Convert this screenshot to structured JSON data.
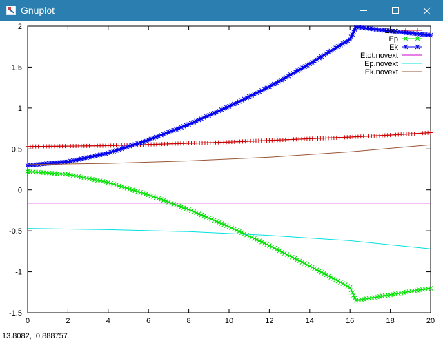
{
  "window": {
    "title": "Gnuplot",
    "app_icon": "gnuplot-icon",
    "titlebar_color": "#2b7fb0",
    "buttons": {
      "minimize_icon": "minimize-icon",
      "maximize_icon": "maximize-icon",
      "close_icon": "close-icon"
    }
  },
  "status": {
    "coords": "13.8082,  0.888757"
  },
  "chart_data": {
    "type": "line",
    "xlim": [
      0,
      20
    ],
    "ylim": [
      -1.5,
      2
    ],
    "x_ticks": [
      "0",
      "2",
      "4",
      "6",
      "8",
      "10",
      "12",
      "14",
      "16",
      "18",
      "20"
    ],
    "y_ticks": [
      "2",
      "1.5",
      "1",
      "0.5",
      "0",
      "-0.5",
      "-1",
      "-1.5"
    ],
    "grid": false,
    "legend_position": "top-right",
    "series": [
      {
        "name": "Etot",
        "color": "#cc0000",
        "marker": "plus",
        "points": [
          [
            0,
            0.53
          ],
          [
            2,
            0.535
          ],
          [
            4,
            0.54
          ],
          [
            6,
            0.555
          ],
          [
            8,
            0.57
          ],
          [
            10,
            0.585
          ],
          [
            12,
            0.605
          ],
          [
            14,
            0.625
          ],
          [
            16,
            0.645
          ],
          [
            18,
            0.67
          ],
          [
            20,
            0.7
          ]
        ]
      },
      {
        "name": "Ep",
        "color": "#00e000",
        "marker": "cross",
        "points": [
          [
            0,
            0.225
          ],
          [
            2,
            0.19
          ],
          [
            4,
            0.09
          ],
          [
            6,
            -0.06
          ],
          [
            8,
            -0.24
          ],
          [
            10,
            -0.45
          ],
          [
            12,
            -0.68
          ],
          [
            14,
            -0.93
          ],
          [
            16,
            -1.19
          ],
          [
            16.3,
            -1.35
          ],
          [
            18,
            -1.28
          ],
          [
            20,
            -1.2
          ]
        ]
      },
      {
        "name": "Ek",
        "color": "#0000ee",
        "marker": "star",
        "points": [
          [
            0,
            0.3
          ],
          [
            2,
            0.345
          ],
          [
            4,
            0.45
          ],
          [
            6,
            0.61
          ],
          [
            8,
            0.8
          ],
          [
            10,
            1.02
          ],
          [
            12,
            1.26
          ],
          [
            14,
            1.54
          ],
          [
            16,
            1.84
          ],
          [
            16.3,
            1.99
          ],
          [
            18,
            1.94
          ],
          [
            20,
            1.89
          ]
        ]
      },
      {
        "name": "Etot.novext",
        "color": "#cc00cc",
        "marker": "none",
        "points": [
          [
            0,
            -0.16
          ],
          [
            20,
            -0.16
          ]
        ]
      },
      {
        "name": "Ep.novext",
        "color": "#00e0e0",
        "marker": "none",
        "points": [
          [
            0,
            -0.47
          ],
          [
            4,
            -0.485
          ],
          [
            8,
            -0.51
          ],
          [
            12,
            -0.555
          ],
          [
            16,
            -0.62
          ],
          [
            20,
            -0.72
          ]
        ]
      },
      {
        "name": "Ek.novext",
        "color": "#995533",
        "marker": "none",
        "points": [
          [
            0,
            0.31
          ],
          [
            4,
            0.325
          ],
          [
            8,
            0.355
          ],
          [
            12,
            0.4
          ],
          [
            16,
            0.465
          ],
          [
            20,
            0.55
          ]
        ]
      }
    ]
  }
}
